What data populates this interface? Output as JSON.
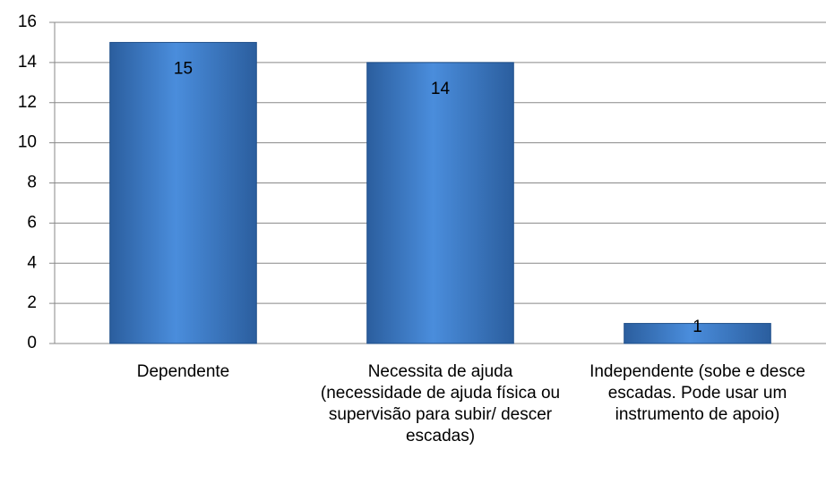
{
  "chart_data": {
    "type": "bar",
    "categories": [
      "Dependente",
      "Necessita de ajuda (necessidade de ajuda física ou supervisão para subir/ descer escadas)",
      "Independente (sobe e desce escadas. Pode usar um instrumento de apoio)"
    ],
    "values": [
      15,
      14,
      1
    ],
    "color": "#3a78c8",
    "ylim": [
      0,
      16
    ],
    "yticks": [
      0,
      2,
      4,
      6,
      8,
      10,
      12,
      14,
      16
    ],
    "grid": true
  }
}
